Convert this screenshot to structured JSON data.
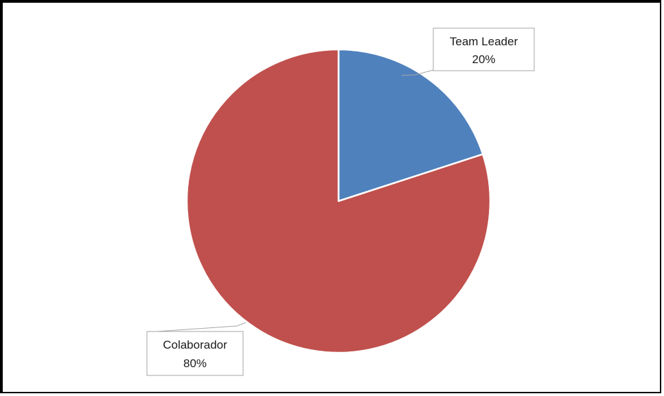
{
  "chart_data": {
    "type": "pie",
    "title": "",
    "slices": [
      {
        "label": "Team Leader",
        "value": 20,
        "display": "20%",
        "color": "#4f81bd"
      },
      {
        "label": "Colaborador",
        "value": 80,
        "display": "80%",
        "color": "#c0504d"
      }
    ],
    "start_angle_deg": 0,
    "direction": "clockwise",
    "legend": "none",
    "slice_border_color": "#ffffff"
  }
}
